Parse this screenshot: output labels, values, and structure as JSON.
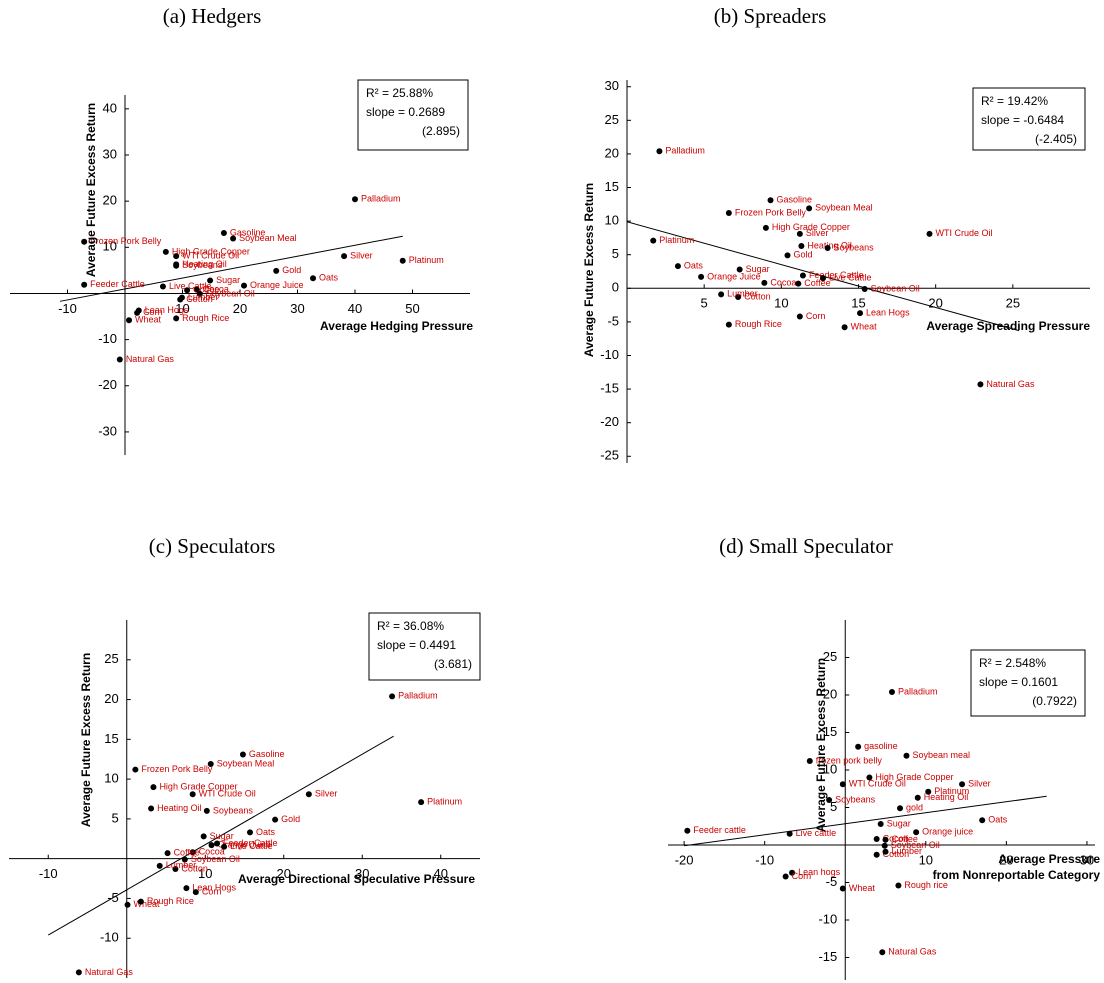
{
  "chart_data": [
    {
      "type": "scatter",
      "title": "(a) Hedgers",
      "xlabel": [
        "Average Hedging Pressure"
      ],
      "ylabel": "Average Future Excess Return",
      "xlim": [
        -20,
        60
      ],
      "ylim": [
        -35,
        43
      ],
      "xticks": [
        -10,
        10,
        20,
        30,
        40,
        50
      ],
      "yticks": [
        -30,
        -20,
        -10,
        10,
        20,
        30,
        40
      ],
      "annotation": [
        "R² = 25.88%",
        "slope = 0.2689",
        "(2.895)"
      ],
      "series": [
        {
          "color": "#000000",
          "label_color": "#cc0000",
          "labels": [
            "Palladium",
            "Gasoline",
            "Soybean Meal",
            "Frozen Pork Belly",
            "High Grade Copper",
            "WTI Crude Oil",
            "Heating Oil",
            "Soybeans",
            "Silver",
            "Platinum",
            "Gold",
            "Oats",
            "Sugar",
            "Orange Juice",
            "Feeder Cattle",
            "Live Cattle",
            "Cocoa",
            "Coffee",
            "Soybean Oil",
            "Cotton",
            "Lumber",
            "Lean Hogs",
            "Corn",
            "Wheat",
            "Rough Rice",
            "Natural Gas"
          ],
          "x": [
            40,
            17.2,
            18.8,
            -7.1,
            7.1,
            8.9,
            8.9,
            8.9,
            38.1,
            48.3,
            26.3,
            32.7,
            14.8,
            20.7,
            -7.1,
            6.6,
            12.5,
            10.8,
            13.0,
            9.6,
            9.9,
            2.4,
            2.1,
            0.7,
            8.9,
            -0.9
          ],
          "values": [
            20.4,
            13.1,
            11.9,
            11.2,
            9.0,
            8.1,
            6.3,
            6.0,
            8.1,
            7.1,
            4.9,
            3.3,
            2.8,
            1.7,
            1.9,
            1.5,
            0.8,
            0.7,
            -0.1,
            -1.3,
            -0.9,
            -3.7,
            -4.2,
            -5.8,
            -5.4,
            -14.3
          ]
        }
      ],
      "fit_line": {
        "color": "#000000",
        "x": [
          -11.3,
          48.3
        ],
        "values": [
          -1.7,
          12.4
        ]
      }
    },
    {
      "type": "scatter",
      "title": "(b) Spreaders",
      "xlabel": [
        "Average Spreading Pressure"
      ],
      "ylabel": "Average Future Excess Return",
      "xlim": [
        0,
        30
      ],
      "ylim": [
        -26,
        31
      ],
      "xticks": [
        5,
        10,
        15,
        20,
        25
      ],
      "yticks": [
        -25,
        -20,
        -15,
        -10,
        -5,
        0,
        5,
        10,
        15,
        20,
        25,
        30
      ],
      "annotation": [
        "R² = 19.42%",
        "slope = -0.6484",
        "(-2.405)"
      ],
      "series": [
        {
          "color": "#000000",
          "label_color": "#cc0000",
          "labels": [
            "Palladium",
            "Gasoline",
            "Soybean Meal",
            "Frozen Pork Belly",
            "High Grade Copper",
            "WTI Crude Oil",
            "Heating Oil",
            "Soybeans",
            "Silver",
            "Platinum",
            "Gold",
            "Oats",
            "Sugar",
            "Orange Juice",
            "Feeder Cattle",
            "Live Cattle",
            "Cocoa",
            "Coffee",
            "Soybean Oil",
            "Cotton",
            "Lumber",
            "Lean Hogs",
            "Corn",
            "Wheat",
            "Rough Rice",
            "Natural Gas"
          ],
          "x": [
            2.1,
            9.3,
            11.8,
            6.6,
            9.0,
            19.6,
            11.3,
            13.0,
            11.2,
            1.7,
            10.4,
            3.3,
            7.3,
            4.8,
            11.4,
            12.7,
            8.9,
            11.1,
            15.4,
            7.2,
            6.1,
            15.1,
            11.2,
            14.1,
            6.6,
            22.9
          ],
          "values": [
            20.4,
            13.1,
            11.9,
            11.2,
            9.0,
            8.1,
            6.3,
            6.0,
            8.1,
            7.1,
            4.9,
            3.3,
            2.8,
            1.7,
            1.9,
            1.5,
            0.8,
            0.7,
            -0.1,
            -1.3,
            -0.9,
            -3.7,
            -4.2,
            -5.8,
            -5.4,
            -14.3
          ]
        }
      ],
      "fit_line": {
        "color": "#000000",
        "x": [
          0,
          25.4
        ],
        "values": [
          9.9,
          -6.3
        ]
      }
    },
    {
      "type": "scatter",
      "title": "(c) Speculators",
      "xlabel": [
        "Average Directional Speculative Pressure"
      ],
      "ylabel": "Average Future Excess Return",
      "xlim": [
        -15,
        45
      ],
      "ylim": [
        -15,
        30
      ],
      "xticks": [
        -10,
        10,
        20,
        30,
        40
      ],
      "yticks": [
        -10,
        -5,
        5,
        10,
        15,
        20,
        25
      ],
      "annotation": [
        "R² = 36.08%",
        "slope = 0.4491",
        "(3.681)"
      ],
      "series": [
        {
          "color": "#000000",
          "label_color": "#cc0000",
          "labels": [
            "Palladium",
            "Gasoline",
            "Soybean Meal",
            "Frozen Pork Belly",
            "High Grade Copper",
            "WTI Crude Oil",
            "Heating Oil",
            "Soybeans",
            "Silver",
            "Platinum",
            "Gold",
            "Oats",
            "Sugar",
            "Orange Juice",
            "Feeder Cattle",
            "Live Cattle",
            "Cocoa",
            "Coffee",
            "Soybean Oil",
            "Cotton",
            "Lumber",
            "Lean Hogs",
            "Corn",
            "Wheat",
            "Rough Rice",
            "Natural Gas"
          ],
          "x": [
            33.8,
            14.8,
            10.7,
            1.1,
            3.4,
            8.4,
            3.1,
            10.2,
            23.2,
            37.5,
            18.9,
            15.7,
            9.8,
            10.8,
            11.5,
            12.4,
            8.4,
            5.2,
            7.4,
            6.2,
            4.2,
            7.6,
            8.8,
            0.1,
            1.8,
            -6.1
          ],
          "values": [
            20.4,
            13.1,
            11.9,
            11.2,
            9.0,
            8.1,
            6.3,
            6.0,
            8.1,
            7.1,
            4.9,
            3.3,
            2.8,
            1.7,
            1.9,
            1.5,
            0.8,
            0.7,
            -0.1,
            -1.3,
            -0.9,
            -3.7,
            -4.2,
            -5.8,
            -5.4,
            -14.3
          ]
        }
      ],
      "fit_line": {
        "color": "#000000",
        "x": [
          -10,
          34
        ],
        "values": [
          -9.6,
          15.4
        ]
      }
    },
    {
      "type": "scatter",
      "title": "(d) Small Speculator",
      "xlabel": [
        "Average Pressure",
        "from Nonreportable Category"
      ],
      "ylabel": "Average Future Excess Return",
      "xlim": [
        -22,
        31
      ],
      "ylim": [
        -18,
        30
      ],
      "xticks": [
        -20,
        -10,
        10,
        20,
        30
      ],
      "yticks": [
        -15,
        -10,
        -5,
        5,
        10,
        15,
        20,
        25
      ],
      "annotation": [
        "R² = 2.548%",
        "slope = 0.1601",
        "(0.7922)"
      ],
      "series": [
        {
          "color": "#000000",
          "label_color": "#cc0000",
          "labels": [
            "Palladium",
            "gasoline",
            "Soybean meal",
            "frozen pork belly",
            "High Grade Copper",
            "WTI Crude Oil",
            "Heating Oil",
            "Soybeans",
            "Silver",
            "Platinum",
            "gold",
            "Oats",
            "Sugar",
            "Orange juice",
            "Feeder cattle",
            "Live cattle",
            "Cocoa",
            "Coffee",
            "Soybean Oil",
            "Cotton",
            "Lumber",
            "Lean hogs",
            "Corn",
            "Wheat",
            "Rough rice",
            "Natural Gas"
          ],
          "x": [
            5.8,
            1.6,
            7.6,
            -4.4,
            3.0,
            -0.3,
            9.0,
            -2.0,
            14.5,
            10.3,
            6.8,
            17.0,
            4.4,
            8.8,
            -19.6,
            -6.9,
            3.9,
            5.0,
            4.9,
            3.9,
            5.0,
            -6.6,
            -7.4,
            -0.3,
            6.6,
            4.6
          ],
          "values": [
            20.4,
            13.1,
            11.9,
            11.2,
            9.0,
            8.1,
            6.3,
            6.0,
            8.1,
            7.1,
            4.9,
            3.3,
            2.8,
            1.7,
            1.9,
            1.5,
            0.8,
            0.7,
            -0.1,
            -1.3,
            -0.9,
            -3.7,
            -4.2,
            -5.8,
            -5.4,
            -14.3
          ]
        }
      ],
      "fit_line": {
        "color": "#000000",
        "x": [
          -20,
          25
        ],
        "values": [
          -0.1,
          6.5
        ]
      }
    }
  ]
}
